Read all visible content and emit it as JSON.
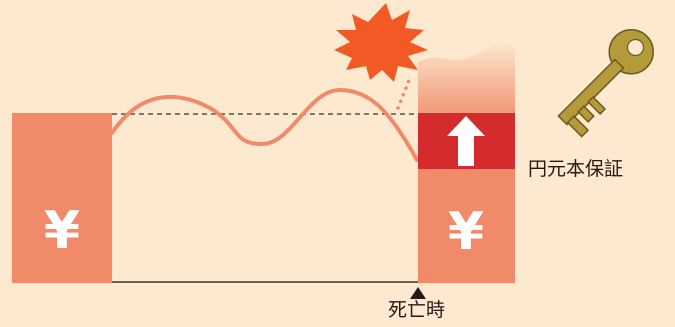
{
  "labels": {
    "currency_symbol": "¥",
    "guarantee": "円元本保証",
    "death_time": "死亡時"
  },
  "colors": {
    "background": "#fde9cf",
    "salmon_block": "#f08a68",
    "curve": "#f08a68",
    "red_band": "#d42b2e",
    "arrow": "#ffffff",
    "burst": "#f15a24",
    "key": "#b59a3c",
    "key_outline": "#6e5a1c",
    "dashed_line": "#333333",
    "base_line": "#333333",
    "text": "#231815"
  },
  "icons": {
    "burst": "explosion-burst-icon",
    "up_arrow": "up-arrow-icon",
    "key": "key-icon",
    "marker": "triangle-up-icon"
  }
}
